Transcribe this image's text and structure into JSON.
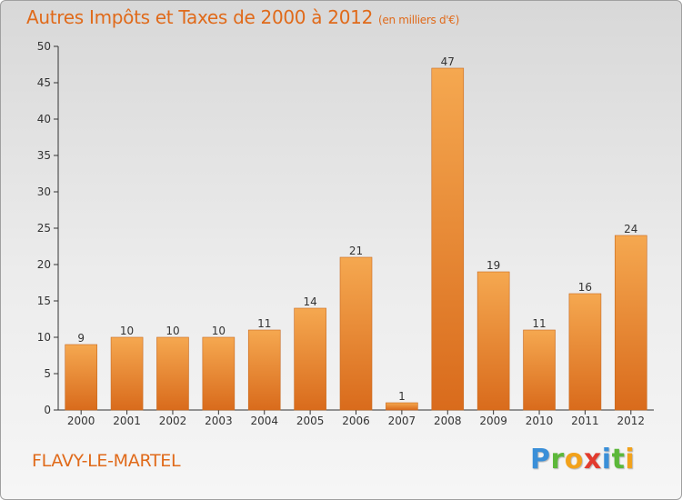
{
  "header": {
    "title": "Autres Impôts et Taxes de 2000 à 2012",
    "unit": "(en milliers d'€)"
  },
  "footer": {
    "commune": "FLAVY-LE-MARTEL",
    "brand_letters": [
      {
        "char": "P",
        "color": "#3a8fd8"
      },
      {
        "char": "r",
        "color": "#5cb83a"
      },
      {
        "char": "o",
        "color": "#f2a21b"
      },
      {
        "char": "x",
        "color": "#e23b2e"
      },
      {
        "char": "i",
        "color": "#3a8fd8"
      },
      {
        "char": "t",
        "color": "#5cb83a"
      },
      {
        "char": "i",
        "color": "#f2a21b"
      }
    ]
  },
  "colors": {
    "accent": "#e06a1a",
    "bar_top": "#f5a850",
    "bar_bottom": "#d96b1c"
  },
  "chart_data": {
    "type": "bar",
    "title": "Autres Impôts et Taxes de 2000 à 2012",
    "subtitle": "(en milliers d'€)",
    "categories": [
      "2000",
      "2001",
      "2002",
      "2003",
      "2004",
      "2005",
      "2006",
      "2007",
      "2008",
      "2009",
      "2010",
      "2011",
      "2012"
    ],
    "values": [
      9,
      10,
      10,
      10,
      11,
      14,
      21,
      1,
      47,
      19,
      11,
      16,
      24
    ],
    "ylim": [
      0,
      50
    ],
    "yticks": [
      0,
      5,
      10,
      15,
      20,
      25,
      30,
      35,
      40,
      45,
      50
    ],
    "grid": false,
    "data_labels": true
  }
}
